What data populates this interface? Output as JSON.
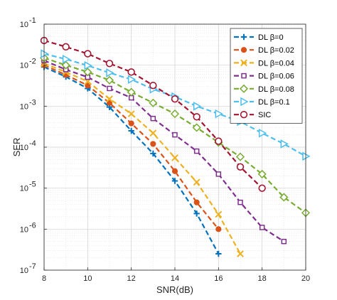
{
  "chart_data": {
    "type": "line",
    "xlabel": "SNR(dB)",
    "ylabel": "SER",
    "xscale": "linear",
    "yscale": "log",
    "xlim": [
      8,
      20
    ],
    "ylim": [
      1e-07,
      0.1
    ],
    "x_ticks": [
      8,
      10,
      12,
      14,
      16,
      18,
      20
    ],
    "y_ticks": [
      {
        "value": 1e-07,
        "base": "10",
        "exp": "-7"
      },
      {
        "value": 1e-06,
        "base": "10",
        "exp": "-6"
      },
      {
        "value": 1e-05,
        "base": "10",
        "exp": "-5"
      },
      {
        "value": 0.0001,
        "base": "10",
        "exp": "-4"
      },
      {
        "value": 0.001,
        "base": "10",
        "exp": "-3"
      },
      {
        "value": 0.01,
        "base": "10",
        "exp": "-2"
      },
      {
        "value": 0.1,
        "base": "10",
        "exp": "-1"
      }
    ],
    "grid": true,
    "minor_grid": true,
    "legend_position": "top-right",
    "series": [
      {
        "name": "DL β=0",
        "color": "#0072BD",
        "marker": "plus",
        "x": [
          8,
          9,
          10,
          11,
          12,
          13,
          14,
          15,
          16
        ],
        "y": [
          0.009,
          0.0052,
          0.0027,
          0.00095,
          0.00025,
          7e-05,
          1.5e-05,
          2.4e-06,
          2.5e-07
        ]
      },
      {
        "name": "DL β=0.02",
        "color": "#D95319",
        "marker": "circle-filled",
        "x": [
          8,
          9,
          10,
          11,
          12,
          13,
          14,
          15,
          16
        ],
        "y": [
          0.01,
          0.0058,
          0.0032,
          0.0012,
          0.00038,
          0.00012,
          2.6e-05,
          4.5e-06,
          1e-06
        ]
      },
      {
        "name": "DL β=0.04",
        "color": "#EDB120",
        "marker": "x",
        "x": [
          8,
          9,
          10,
          11,
          12,
          13,
          14,
          15,
          16,
          17
        ],
        "y": [
          0.011,
          0.0068,
          0.004,
          0.0015,
          0.00065,
          0.00022,
          5.5e-05,
          1.4e-05,
          2.3e-06,
          2.5e-07
        ]
      },
      {
        "name": "DL β=0.06",
        "color": "#7E2F8E",
        "marker": "square",
        "x": [
          8,
          9,
          10,
          11,
          12,
          13,
          14,
          15,
          16,
          17,
          18,
          19
        ],
        "y": [
          0.013,
          0.0078,
          0.0051,
          0.0027,
          0.0016,
          0.0005,
          0.0002,
          8e-05,
          2.2e-05,
          4.5e-06,
          1.1e-06,
          5e-07
        ]
      },
      {
        "name": "DL β=0.08",
        "color": "#77AC30",
        "marker": "diamond",
        "x": [
          8,
          9,
          10,
          11,
          12,
          13,
          14,
          15,
          16,
          17,
          18,
          19,
          20
        ],
        "y": [
          0.015,
          0.01,
          0.0068,
          0.0043,
          0.0022,
          0.0012,
          0.00065,
          0.0003,
          0.00013,
          5.8e-05,
          2.2e-05,
          6e-06,
          2.5e-06
        ]
      },
      {
        "name": "DL β=0.1",
        "color": "#4DBEEE",
        "marker": "triangle-right",
        "x": [
          8,
          9,
          10,
          11,
          12,
          13,
          14,
          15,
          16,
          17,
          18,
          19,
          20
        ],
        "y": [
          0.019,
          0.014,
          0.0098,
          0.0065,
          0.0045,
          0.0026,
          0.0017,
          0.001,
          0.00065,
          0.00042,
          0.00022,
          0.00012,
          6e-05
        ]
      },
      {
        "name": "SIC",
        "color": "#A2142F",
        "marker": "circle-open",
        "x": [
          8,
          9,
          10,
          11,
          12,
          13,
          14,
          15,
          16,
          17,
          18
        ],
        "y": [
          0.04,
          0.028,
          0.019,
          0.011,
          0.0068,
          0.0032,
          0.0015,
          0.00055,
          0.00014,
          3.3e-05,
          1e-05
        ]
      }
    ]
  }
}
